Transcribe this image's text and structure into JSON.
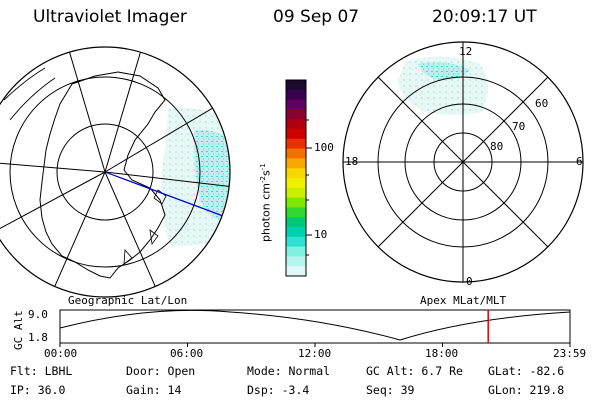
{
  "header": {
    "title": "Ultraviolet Imager",
    "date": "09 Sep 07",
    "time": "20:09:17 UT"
  },
  "colorbar": {
    "unit": "photon cm",
    "unit_exp": "-2",
    "unit_s": "s",
    "unit_s_exp": "-1",
    "ticks": [
      "100",
      "10"
    ],
    "colors": [
      "#1a0a2e",
      "#3a0050",
      "#600060",
      "#8a0030",
      "#b00010",
      "#d00000",
      "#e83000",
      "#f07000",
      "#f8a800",
      "#f8d800",
      "#f0f000",
      "#c8f000",
      "#80e800",
      "#30d830",
      "#00c878",
      "#00d0b0",
      "#30e0d0",
      "#80f0e0",
      "#b8f4f0",
      "#e0f8f8"
    ]
  },
  "left_map": {
    "label": "Geographic Lat/Lon"
  },
  "right_map": {
    "label": "Apex MLat/MLT",
    "mlt": {
      "top": "12",
      "left": "18",
      "right": "6",
      "bottom": "0"
    },
    "mlat": [
      "60",
      "70",
      "80"
    ]
  },
  "altitude_plot": {
    "ylabel": "GC Alt",
    "yticks": [
      "9.0",
      "1.8"
    ],
    "xticks": [
      "00:00",
      "06:00",
      "12:00",
      "18:00",
      "23:59"
    ],
    "marker_hour": 20.15,
    "marker_color": "#e00000"
  },
  "info": {
    "flt": "Flt: LBHL",
    "ip": "IP: 36.0",
    "door": "Door: Open",
    "gain": "Gain: 14",
    "mode": "Mode: Normal",
    "dsp": "Dsp:    -3.4",
    "gcalt": "GC Alt: 6.7 Re",
    "seq": "Seq: 39",
    "glat": "GLat: -82.6",
    "glon": "GLon: 219.8"
  }
}
